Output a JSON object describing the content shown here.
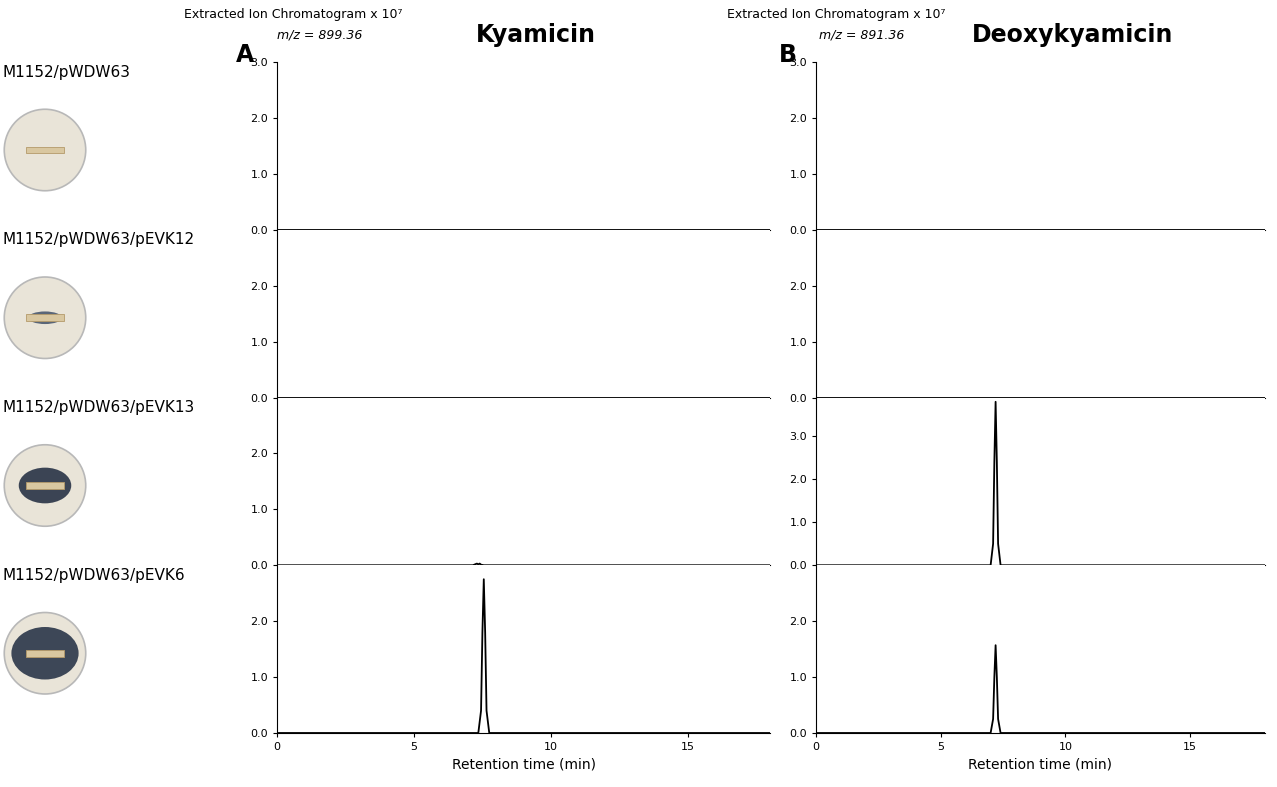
{
  "columns": [
    {
      "panel": "A",
      "header": "Extracted Ion Chromatogram x 10⁷",
      "mz": "m/z = 899.36",
      "title": "Kyamicin"
    },
    {
      "panel": "B",
      "header": "Extracted Ion Chromatogram x 10⁷",
      "mz": "m/z = 891.36",
      "title": "Deoxykyamicin"
    }
  ],
  "rows": [
    "M1152/pWDW63",
    "M1152/pWDW63/pEVK12",
    "M1152/pWDW63/pEVK13",
    "M1152/pWDW63/pEVK6"
  ],
  "chart_data": [
    {
      "type": "line",
      "color": "#000000",
      "tick_labels": "y",
      "x": [
        0,
        6,
        12,
        18
      ],
      "values": [
        0,
        0,
        0,
        0
      ],
      "xlim": [
        0,
        18
      ],
      "ylim": [
        0,
        3
      ],
      "yticks": [
        {
          "value": 0,
          "label": "0.0"
        },
        {
          "value": 1,
          "label": "1.0"
        },
        {
          "value": 2,
          "label": "2.0"
        },
        {
          "value": 3,
          "label": "3.0"
        }
      ]
    },
    {
      "type": "line",
      "color": "#000000",
      "tick_labels": "y",
      "x": [
        0,
        6,
        12,
        18
      ],
      "values": [
        0,
        0,
        0,
        0
      ],
      "xlim": [
        0,
        18
      ],
      "ylim": [
        0,
        3
      ],
      "yticks": [
        {
          "value": 0,
          "label": "0.0"
        },
        {
          "value": 1,
          "label": "1.0"
        },
        {
          "value": 2,
          "label": "2.0"
        },
        {
          "value": 3,
          "label": "3.0"
        }
      ]
    },
    {
      "type": "line",
      "color": "#000000",
      "tick_labels": "y",
      "x": [
        0,
        6,
        12,
        18
      ],
      "values": [
        0,
        0,
        0,
        0
      ],
      "xlim": [
        0,
        18
      ],
      "ylim": [
        0,
        3
      ],
      "yticks": [
        {
          "value": 0,
          "label": "0.0"
        },
        {
          "value": 1,
          "label": "1.0"
        },
        {
          "value": 2,
          "label": "2.0"
        }
      ]
    },
    {
      "type": "line",
      "color": "#000000",
      "tick_labels": "y",
      "x": [
        0,
        6,
        12,
        18
      ],
      "values": [
        0,
        0,
        0,
        0
      ],
      "xlim": [
        0,
        18
      ],
      "ylim": [
        0,
        3
      ],
      "yticks": [
        {
          "value": 0,
          "label": "0.0"
        },
        {
          "value": 1,
          "label": "1.0"
        },
        {
          "value": 2,
          "label": "2.0"
        }
      ]
    },
    {
      "type": "line",
      "color": "#000000",
      "tick_labels": "y",
      "x": [
        0,
        7.15,
        7.25,
        7.3,
        7.35,
        7.4,
        7.45,
        7.55,
        18
      ],
      "values": [
        0,
        0,
        0.02,
        0.03,
        0.015,
        0.03,
        0.01,
        0,
        0
      ],
      "xlim": [
        0,
        18
      ],
      "ylim": [
        0,
        3
      ],
      "yticks": [
        {
          "value": 0,
          "label": "0.0"
        },
        {
          "value": 1,
          "label": "1.0"
        },
        {
          "value": 2,
          "label": "2.0"
        }
      ]
    },
    {
      "type": "line",
      "color": "#000000",
      "tick_labels": "y",
      "x": [
        0,
        7.0,
        7.1,
        7.15,
        7.2,
        7.25,
        7.3,
        7.4,
        18
      ],
      "values": [
        0,
        0,
        0.5,
        2.4,
        3.8,
        2.4,
        0.5,
        0,
        0
      ],
      "xlim": [
        0,
        18
      ],
      "ylim": [
        0,
        3.9
      ],
      "yticks": [
        {
          "value": 0,
          "label": "0.0"
        },
        {
          "value": 1,
          "label": "1.0"
        },
        {
          "value": 2,
          "label": "2.0"
        },
        {
          "value": 3,
          "label": "3.0"
        }
      ]
    },
    {
      "type": "line",
      "color": "#000000",
      "x_label": "Retention time (min)",
      "x": [
        0,
        7.35,
        7.45,
        7.5,
        7.55,
        7.6,
        7.65,
        7.75,
        18
      ],
      "values": [
        0,
        0,
        0.4,
        1.8,
        2.75,
        1.8,
        0.4,
        0,
        0
      ],
      "xlim": [
        0,
        18
      ],
      "ylim": [
        0,
        3
      ],
      "xticks": [
        0,
        5,
        10,
        15
      ],
      "yticks": [
        {
          "value": 0,
          "label": "0.0"
        },
        {
          "value": 1,
          "label": "1.0"
        },
        {
          "value": 2,
          "label": "2.0"
        }
      ]
    },
    {
      "type": "line",
      "color": "#000000",
      "x_label": "Retention time (min)",
      "x": [
        0,
        7.0,
        7.1,
        7.15,
        7.2,
        7.25,
        7.3,
        7.4,
        18
      ],
      "values": [
        0,
        0,
        0.25,
        1.0,
        1.57,
        1.0,
        0.25,
        0,
        0
      ],
      "xlim": [
        0,
        18
      ],
      "ylim": [
        0,
        3
      ],
      "xticks": [
        0,
        5,
        10,
        15
      ],
      "yticks": [
        {
          "value": 0,
          "label": "0.0"
        },
        {
          "value": 1,
          "label": "1.0"
        },
        {
          "value": 2,
          "label": "2.0"
        }
      ]
    }
  ]
}
